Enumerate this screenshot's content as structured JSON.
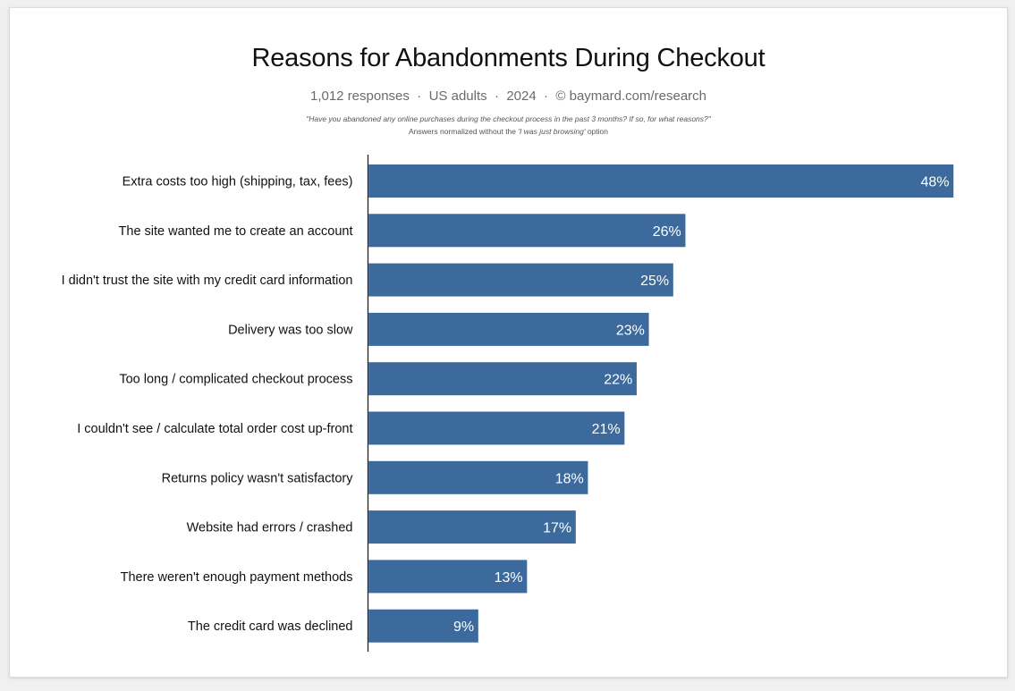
{
  "chart_data": {
    "type": "bar",
    "orientation": "horizontal",
    "title": "Reasons for Abandonments During Checkout",
    "subtitle": {
      "responses": "1,012 responses",
      "population": "US adults",
      "year": "2024",
      "source": "© baymard.com/research",
      "separator": "·"
    },
    "question": "\"Have you abandoned any online purchases during the checkout process in the past 3 months? If so, for what reasons?\"",
    "note": {
      "prefix": "Answers normalized without the ",
      "emphasis": "'I was just browsing'",
      "suffix": " option"
    },
    "categories": [
      "Extra costs too high (shipping, tax, fees)",
      "The site wanted me to create an account",
      "I didn't trust the site with my credit card information",
      "Delivery was too slow",
      "Too long / complicated checkout process",
      "I couldn't see / calculate total order cost up-front",
      "Returns policy wasn't satisfactory",
      "Website had errors / crashed",
      "There weren't enough payment methods",
      "The credit card was declined"
    ],
    "values": [
      48,
      26,
      25,
      23,
      22,
      21,
      18,
      17,
      13,
      9
    ],
    "value_suffix": "%",
    "xlim": [
      0,
      48
    ],
    "bar_color": "#3c6a9c",
    "grid": false
  }
}
